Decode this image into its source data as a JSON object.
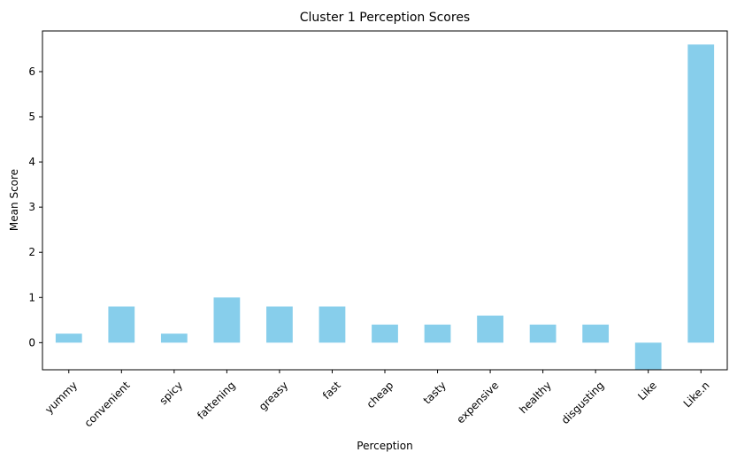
{
  "chart_data": {
    "type": "bar",
    "title": "Cluster 1 Perception Scores",
    "xlabel": "Perception",
    "ylabel": "Mean Score",
    "categories": [
      "yummy",
      "convenient",
      "spicy",
      "fattening",
      "greasy",
      "fast",
      "cheap",
      "tasty",
      "expensive",
      "healthy",
      "disgusting",
      "Like",
      "Like.n"
    ],
    "values": [
      0.2,
      0.8,
      0.2,
      1.0,
      0.8,
      0.8,
      0.4,
      0.4,
      0.6,
      0.4,
      0.4,
      -0.6,
      6.6
    ],
    "ylim": [
      -0.6,
      6.9
    ],
    "yticks": [
      0,
      1,
      2,
      3,
      4,
      5,
      6
    ],
    "bar_color": "#87ceeb",
    "grid": false,
    "legend": "none"
  }
}
